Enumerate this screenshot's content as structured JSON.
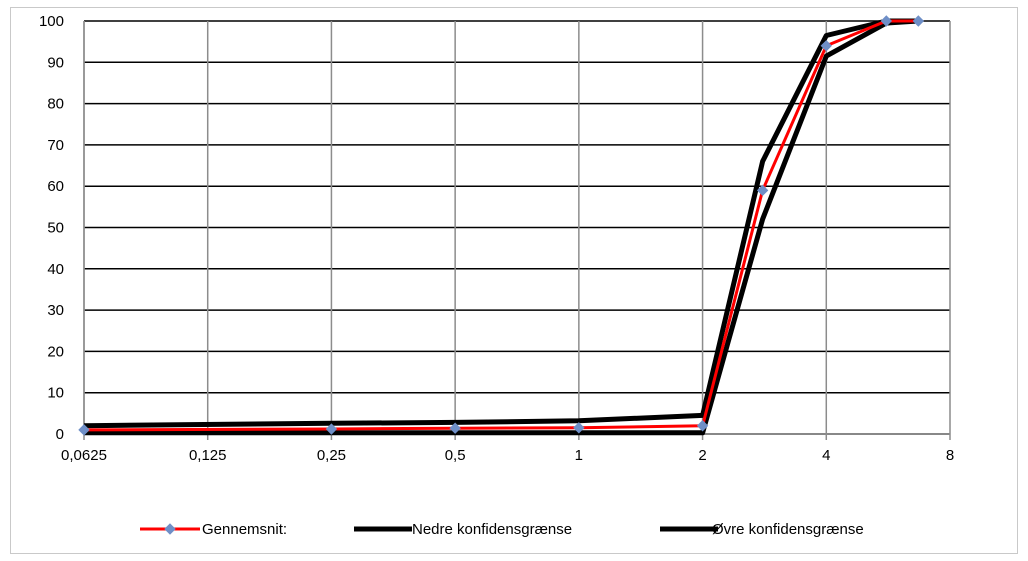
{
  "chart_data": {
    "type": "line",
    "x_scale": "log2",
    "x_ticks": [
      "0,0625",
      "0,125",
      "0,25",
      "0,5",
      "1",
      "2",
      "4",
      "8"
    ],
    "x_tick_values": [
      0.0625,
      0.125,
      0.25,
      0.5,
      1,
      2,
      4,
      8
    ],
    "xlim": [
      0.0625,
      8
    ],
    "ylim": [
      0,
      100
    ],
    "y_ticks": [
      "0",
      "10",
      "20",
      "30",
      "40",
      "50",
      "60",
      "70",
      "80",
      "90",
      "100"
    ],
    "y_tick_values": [
      0,
      10,
      20,
      30,
      40,
      50,
      60,
      70,
      80,
      90,
      100
    ],
    "grid": true,
    "legend_position": "bottom",
    "series": [
      {
        "name": "Gennemsnit:",
        "color": "#ff0000",
        "marker": "diamond",
        "marker_color": "#6f8fc7",
        "x": [
          0.0625,
          0.25,
          0.5,
          1,
          2,
          2.8,
          4,
          5.6,
          6.7
        ],
        "y": [
          1,
          1.2,
          1.4,
          1.5,
          2,
          59,
          94,
          100,
          100
        ]
      },
      {
        "name": "Nedre konfidensgrænse",
        "color": "#000000",
        "marker": "none",
        "x": [
          0.0625,
          0.25,
          0.5,
          1,
          2,
          2.8,
          4,
          5.6,
          6.7
        ],
        "y": [
          0.3,
          0.3,
          0.3,
          0.3,
          0.3,
          52,
          91.5,
          99.5,
          100
        ]
      },
      {
        "name": "Øvre konfidensgrænse",
        "color": "#000000",
        "marker": "none",
        "x": [
          0.0625,
          0.25,
          0.5,
          1,
          2,
          2.8,
          4,
          5.6,
          6.7
        ],
        "y": [
          2,
          2.6,
          2.8,
          3.2,
          4.5,
          66,
          96.5,
          100,
          100
        ]
      }
    ]
  }
}
